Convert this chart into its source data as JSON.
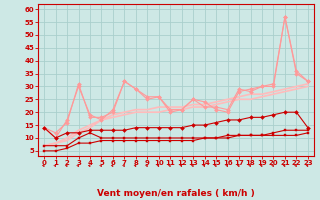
{
  "xlabel": "Vent moyen/en rafales ( km/h )",
  "background_color": "#cde8e5",
  "grid_color": "#aacfcc",
  "x": [
    0,
    1,
    2,
    3,
    4,
    5,
    6,
    7,
    8,
    9,
    10,
    11,
    12,
    13,
    14,
    15,
    16,
    17,
    18,
    19,
    20,
    21,
    22,
    23
  ],
  "series": [
    {
      "y": [
        7,
        7,
        7,
        10,
        12,
        10,
        10,
        10,
        10,
        10,
        10,
        10,
        10,
        10,
        10,
        10,
        11,
        11,
        11,
        11,
        12,
        13,
        13,
        13
      ],
      "color": "#cc0000",
      "marker": "s",
      "linewidth": 0.8,
      "markersize": 2.0,
      "zorder": 4
    },
    {
      "y": [
        5,
        5,
        6,
        8,
        8,
        9,
        9,
        9,
        9,
        9,
        9,
        9,
        9,
        9,
        10,
        10,
        10,
        11,
        11,
        11,
        11,
        11,
        11,
        12
      ],
      "color": "#cc0000",
      "marker": "s",
      "linewidth": 0.8,
      "markersize": 2.0,
      "zorder": 4
    },
    {
      "y": [
        14,
        10,
        12,
        12,
        13,
        13,
        13,
        13,
        14,
        14,
        14,
        14,
        14,
        15,
        15,
        16,
        17,
        17,
        18,
        18,
        19,
        20,
        20,
        14
      ],
      "color": "#cc0000",
      "marker": "D",
      "linewidth": 0.8,
      "markersize": 2.0,
      "zorder": 4
    },
    {
      "y": [
        14,
        12,
        16,
        31,
        18,
        18,
        20,
        32,
        29,
        26,
        26,
        21,
        21,
        25,
        22,
        22,
        21,
        29,
        28,
        30,
        31,
        57,
        35,
        32
      ],
      "color": "#ff9999",
      "marker": "D",
      "linewidth": 0.8,
      "markersize": 2.0,
      "zorder": 3
    },
    {
      "y": [
        14,
        10,
        17,
        30,
        19,
        17,
        21,
        32,
        29,
        25,
        26,
        20,
        21,
        25,
        24,
        21,
        20,
        28,
        29,
        30,
        30,
        57,
        36,
        32
      ],
      "color": "#ff9999",
      "marker": "D",
      "linewidth": 0.8,
      "markersize": 2.0,
      "zorder": 3
    },
    {
      "y": [
        7,
        8,
        9,
        12,
        14,
        17,
        18,
        19,
        20,
        20,
        20,
        21,
        21,
        22,
        22,
        23,
        24,
        25,
        25,
        26,
        27,
        28,
        29,
        30
      ],
      "color": "#ffbbbb",
      "marker": null,
      "linewidth": 1.2,
      "markersize": 0,
      "zorder": 2
    },
    {
      "y": [
        7,
        8,
        10,
        13,
        15,
        17,
        19,
        20,
        21,
        21,
        22,
        22,
        22,
        23,
        23,
        24,
        25,
        26,
        27,
        27,
        28,
        29,
        30,
        31
      ],
      "color": "#ffbbbb",
      "marker": null,
      "linewidth": 1.2,
      "markersize": 0,
      "zorder": 2
    }
  ],
  "yticks": [
    5,
    10,
    15,
    20,
    25,
    30,
    35,
    40,
    45,
    50,
    55,
    60
  ],
  "xticks": [
    0,
    1,
    2,
    3,
    4,
    5,
    6,
    7,
    8,
    9,
    10,
    11,
    12,
    13,
    14,
    15,
    16,
    17,
    18,
    19,
    20,
    21,
    22,
    23
  ],
  "ylim": [
    3,
    62
  ],
  "xlim": [
    -0.5,
    23.5
  ],
  "arrow_color": "#cc0000",
  "tick_fontsize": 5,
  "xlabel_fontsize": 6.5
}
